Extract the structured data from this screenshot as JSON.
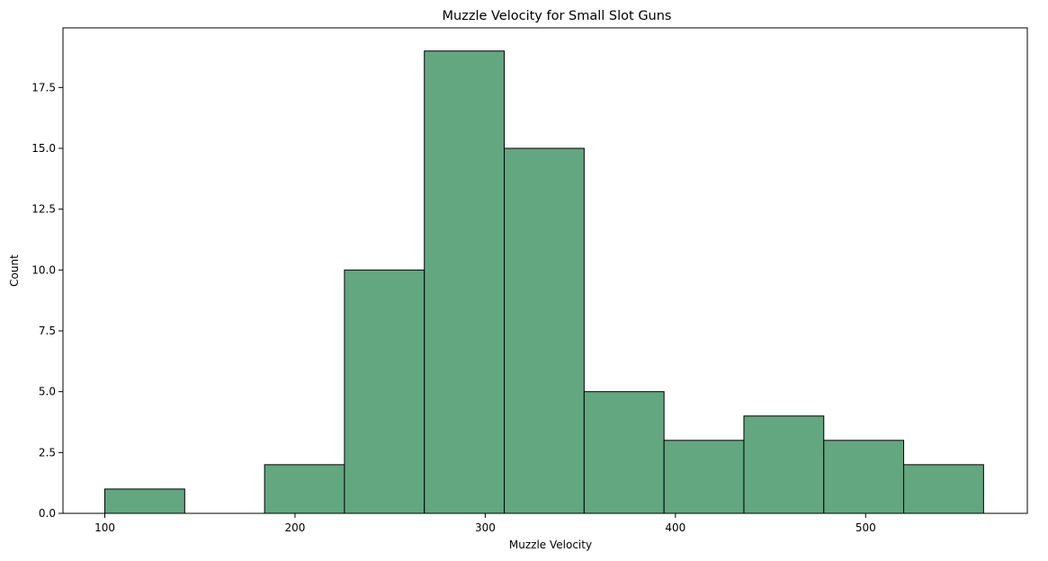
{
  "chart_data": {
    "type": "bar",
    "subtype": "histogram",
    "title": "Muzzle Velocity for Small Slot Guns",
    "xlabel": "Muzzle Velocity",
    "ylabel": "Count",
    "bins": [
      {
        "x0": 100,
        "x1": 142,
        "count": 1
      },
      {
        "x0": 142,
        "x1": 184,
        "count": 0
      },
      {
        "x0": 184,
        "x1": 226,
        "count": 2
      },
      {
        "x0": 226,
        "x1": 268,
        "count": 10
      },
      {
        "x0": 268,
        "x1": 310,
        "count": 19
      },
      {
        "x0": 310,
        "x1": 352,
        "count": 15
      },
      {
        "x0": 352,
        "x1": 394,
        "count": 5
      },
      {
        "x0": 394,
        "x1": 436,
        "count": 3
      },
      {
        "x0": 436,
        "x1": 478,
        "count": 4
      },
      {
        "x0": 478,
        "x1": 520,
        "count": 3
      },
      {
        "x0": 520,
        "x1": 562,
        "count": 2
      }
    ],
    "xlim": [
      78,
      585
    ],
    "ylim": [
      0,
      19.95
    ],
    "xticks": [
      100,
      200,
      300,
      400,
      500
    ],
    "xtick_labels": [
      "100",
      "200",
      "300",
      "400",
      "500"
    ],
    "yticks": [
      0,
      2.5,
      5,
      7.5,
      10,
      12.5,
      15,
      17.5
    ],
    "ytick_labels": [
      "0.0",
      "2.5",
      "5.0",
      "7.5",
      "10.0",
      "12.5",
      "15.0",
      "17.5"
    ],
    "bar_color": "#62a77f",
    "edge_color": "#000000",
    "grid": false,
    "legend": false
  }
}
